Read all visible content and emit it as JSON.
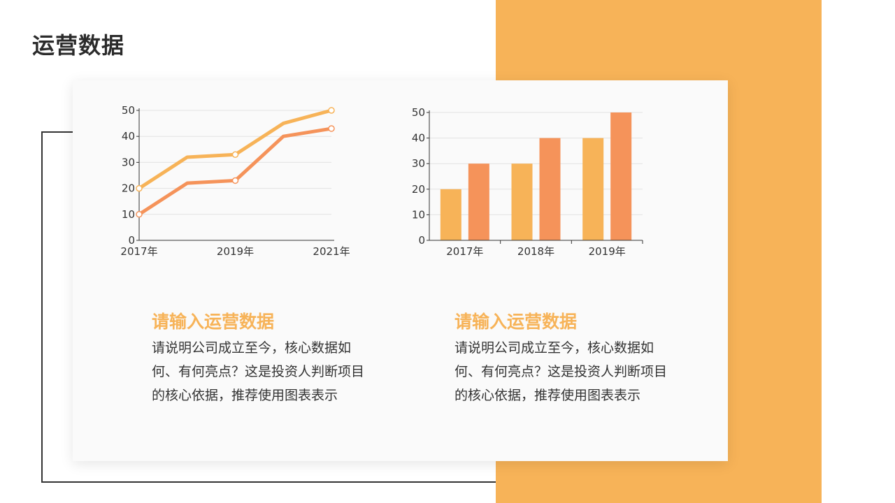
{
  "page": {
    "title": "运营数据"
  },
  "colors": {
    "accent": "#F7B358",
    "accent_dark": "#F5935A",
    "text": "#333333"
  },
  "sections": [
    {
      "heading": "请输入运营数据",
      "body": "请说明公司成立至今，核心数据如何、有何亮点？这是投资人判断项目的核心依据，推荐使用图表表示"
    },
    {
      "heading": "请输入运营数据",
      "body": "请说明公司成立至今，核心数据如何、有何亮点？这是投资人判断项目的核心依据，推荐使用图表表示"
    }
  ],
  "chart_data": [
    {
      "type": "line",
      "x": [
        2017,
        2018,
        2019,
        2020,
        2021
      ],
      "x_tick_labels": [
        "2017年",
        "2019年",
        "2021年"
      ],
      "x_tick_values": [
        2017,
        2019,
        2021
      ],
      "y_ticks": [
        0,
        10,
        20,
        30,
        40,
        50
      ],
      "ylim": [
        0,
        50
      ],
      "grid": true,
      "series": [
        {
          "values": [
            20,
            32,
            33,
            45,
            50
          ],
          "color": "#F7B358",
          "markers_at": [
            0,
            2,
            4
          ]
        },
        {
          "values": [
            10,
            22,
            23,
            40,
            43
          ],
          "color": "#F5935A",
          "markers_at": [
            0,
            2,
            4
          ]
        }
      ]
    },
    {
      "type": "bar",
      "categories": [
        "2017年",
        "2018年",
        "2019年"
      ],
      "y_ticks": [
        0,
        10,
        20,
        30,
        40,
        50
      ],
      "ylim": [
        0,
        50
      ],
      "grid": true,
      "series": [
        {
          "values": [
            20,
            30,
            40
          ],
          "color": "#F7B358"
        },
        {
          "values": [
            30,
            40,
            50
          ],
          "color": "#F5935A"
        }
      ]
    }
  ]
}
